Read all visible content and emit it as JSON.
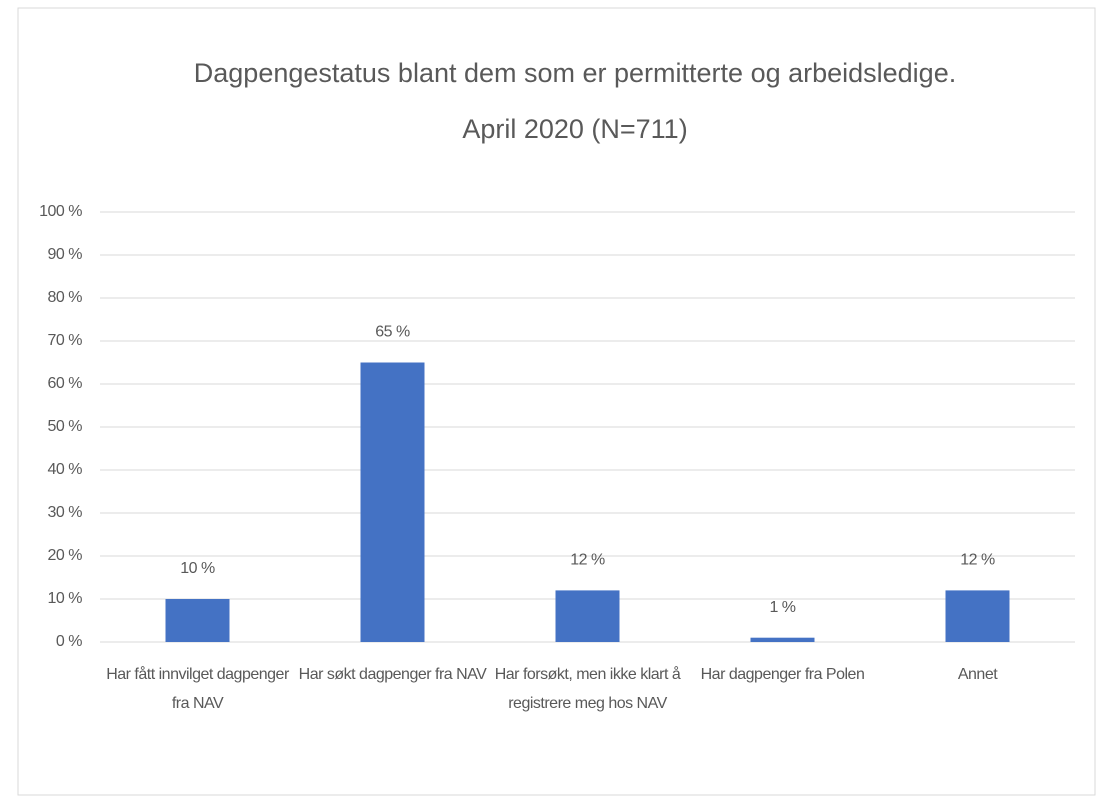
{
  "chart_data": {
    "type": "bar",
    "title": "Dagpengestatus blant dem som er permitterte og arbeidsledige.",
    "subtitle": "April 2020 (N=711)",
    "categories": [
      "Har fått innvilget dagpenger fra NAV",
      "Har søkt dagpenger fra NAV",
      "Har forsøkt, men ikke klart å registrere meg hos NAV",
      "Har dagpenger fra Polen",
      "Annet"
    ],
    "values": [
      10,
      65,
      12,
      1,
      12
    ],
    "value_labels": [
      "10 %",
      "65 %",
      "12 %",
      "1 %",
      "12 %"
    ],
    "color": "#4472c4",
    "ylim": [
      0,
      100
    ],
    "yticks": [
      {
        "value": 0,
        "label": "0 %"
      },
      {
        "value": 10,
        "label": "10 %"
      },
      {
        "value": 20,
        "label": "20 %"
      },
      {
        "value": 30,
        "label": "30 %"
      },
      {
        "value": 40,
        "label": "40 %"
      },
      {
        "value": 50,
        "label": "50 %"
      },
      {
        "value": 60,
        "label": "60 %"
      },
      {
        "value": 70,
        "label": "70 %"
      },
      {
        "value": 80,
        "label": "80 %"
      },
      {
        "value": 90,
        "label": "90 %"
      },
      {
        "value": 100,
        "label": "100 %"
      }
    ],
    "grid": true
  }
}
